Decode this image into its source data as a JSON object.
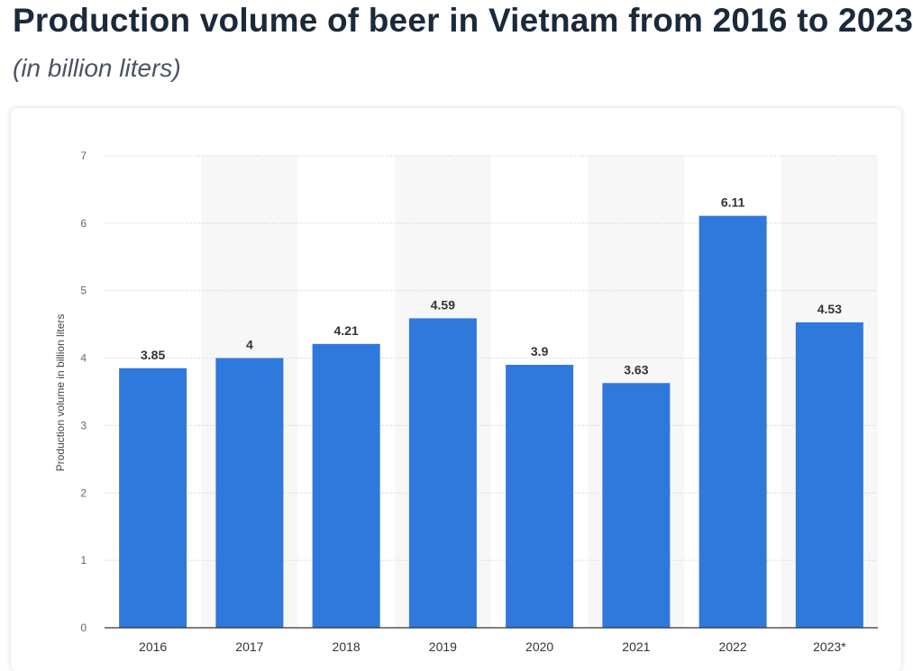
{
  "header": {
    "title": "Production volume of beer in Vietnam from 2016 to 2023",
    "subtitle": "(in billion liters)"
  },
  "chart_data": {
    "type": "bar",
    "title": "Production volume of beer in Vietnam from 2016 to 2023",
    "subtitle": "(in billion liters)",
    "categories": [
      "2016",
      "2017",
      "2018",
      "2019",
      "2020",
      "2021",
      "2022",
      "2023*"
    ],
    "values": [
      3.85,
      4,
      4.21,
      4.59,
      3.9,
      3.63,
      6.11,
      4.53
    ],
    "data_labels": [
      "3.85",
      "4",
      "4.21",
      "4.59",
      "3.9",
      "3.63",
      "6.11",
      "4.53"
    ],
    "xlabel": "",
    "ylabel": "Production volume in billion liters",
    "ylim": [
      0,
      7
    ],
    "yticks": [
      0,
      1,
      2,
      3,
      4,
      5,
      6,
      7
    ],
    "grid": true,
    "bar_color": "#2f78dc"
  }
}
